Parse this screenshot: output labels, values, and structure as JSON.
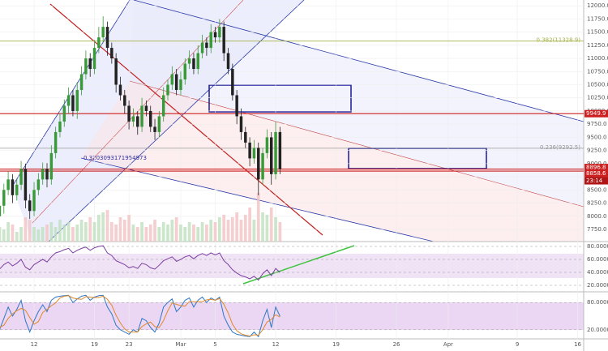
{
  "chart_data": {
    "type": "candlestick",
    "x": [
      8,
      8.5,
      9,
      9.5,
      10,
      10.5,
      11,
      11.5,
      12,
      12.5,
      13,
      13.5,
      14,
      14.5,
      15,
      15.5,
      16,
      16.5,
      17,
      17.5,
      18,
      18.5,
      19,
      19.5,
      20,
      20.5,
      21,
      21.5,
      22,
      22.5,
      23,
      23.5,
      24,
      24.5,
      25,
      25.5,
      26,
      26.5,
      27,
      27.5,
      28,
      28.5,
      29,
      29.5,
      30,
      30.5,
      31,
      31.5,
      32,
      32.5,
      33,
      33.5,
      34,
      34.5,
      35,
      35.5,
      36,
      36.5,
      37,
      37.5,
      38,
      38.5,
      39,
      39.5,
      40,
      40.5
    ],
    "open": [
      8000,
      8200,
      8500,
      8700,
      8400,
      8600,
      8900,
      8300,
      8100,
      8500,
      8700,
      8900,
      8700,
      9200,
      9600,
      9800,
      10100,
      10300,
      10000,
      10400,
      10700,
      11000,
      10800,
      11200,
      11400,
      11600,
      11200,
      11000,
      10500,
      10300,
      10100,
      9800,
      9900,
      9700,
      10100,
      10000,
      9700,
      9600,
      9900,
      10300,
      10500,
      10700,
      10400,
      10600,
      10900,
      11000,
      10800,
      11100,
      11300,
      11200,
      11500,
      11400,
      11600,
      11100,
      10800,
      10300,
      9900,
      9600,
      9400,
      9100,
      9300,
      8700,
      9200,
      9500,
      8800,
      9600
    ],
    "high": [
      8350,
      8620,
      8850,
      8800,
      8720,
      9050,
      9000,
      8420,
      8650,
      8820,
      9020,
      9010,
      9350,
      9700,
      9950,
      10220,
      10450,
      10400,
      10550,
      10850,
      11150,
      11100,
      11350,
      11600,
      11800,
      11700,
      11300,
      11100,
      10650,
      10400,
      10200,
      10050,
      10000,
      10250,
      10200,
      10100,
      9850,
      10000,
      10450,
      10600,
      10850,
      10800,
      10750,
      11000,
      11150,
      11100,
      11250,
      11450,
      11400,
      11650,
      11600,
      11750,
      11700,
      11200,
      10900,
      10400,
      10050,
      9700,
      9500,
      9450,
      9400,
      9300,
      9650,
      9600,
      9800,
      9700
    ],
    "low": [
      7850,
      8050,
      8400,
      8250,
      8300,
      8500,
      8150,
      7950,
      8000,
      8400,
      8600,
      8550,
      8600,
      9100,
      9500,
      9700,
      9950,
      9900,
      9850,
      10300,
      10600,
      10650,
      10700,
      11100,
      11300,
      11050,
      10900,
      10350,
      10200,
      9950,
      9650,
      9700,
      9550,
      9600,
      9900,
      9600,
      9450,
      9500,
      9800,
      10200,
      10400,
      10300,
      10300,
      10500,
      10800,
      10700,
      10700,
      11000,
      11050,
      11100,
      11300,
      11300,
      10950,
      10700,
      10200,
      9750,
      9450,
      9300,
      8950,
      9000,
      8400,
      8600,
      9100,
      8600,
      8700,
      8800
    ],
    "close": [
      8200,
      8500,
      8700,
      8400,
      8600,
      8900,
      8300,
      8100,
      8500,
      8700,
      8900,
      8700,
      9200,
      9600,
      9800,
      10100,
      10300,
      10000,
      10400,
      10700,
      11000,
      10800,
      11200,
      11400,
      11600,
      11200,
      11000,
      10500,
      10300,
      10100,
      9800,
      9900,
      9700,
      10100,
      10000,
      9700,
      9600,
      9900,
      10300,
      10500,
      10700,
      10400,
      10600,
      10900,
      11000,
      10800,
      11100,
      11300,
      11200,
      11500,
      11400,
      11600,
      11100,
      10800,
      10300,
      9900,
      9600,
      9400,
      9100,
      9300,
      8700,
      9200,
      9500,
      8800,
      9600,
      8897
    ],
    "volume": [
      30,
      25,
      40,
      35,
      20,
      30,
      50,
      45,
      30,
      25,
      30,
      35,
      40,
      30,
      45,
      35,
      40,
      30,
      35,
      45,
      40,
      50,
      40,
      55,
      60,
      65,
      40,
      35,
      50,
      45,
      55,
      35,
      30,
      40,
      30,
      35,
      45,
      30,
      40,
      35,
      45,
      50,
      35,
      30,
      40,
      35,
      30,
      40,
      35,
      45,
      40,
      50,
      55,
      45,
      50,
      60,
      45,
      55,
      70,
      45,
      100,
      60,
      55,
      70,
      50,
      40
    ],
    "up_color": "#3a9a3a",
    "down_color": "#222222",
    "xlim": [
      8.05,
      75.7
    ],
    "xticks": [
      {
        "value": 12,
        "label": "12"
      },
      {
        "value": 19,
        "label": "19"
      },
      {
        "value": 23,
        "label": "23"
      },
      {
        "value": 29,
        "label": "Mar"
      },
      {
        "value": 33,
        "label": "5"
      },
      {
        "value": 40,
        "label": "12"
      },
      {
        "value": 47,
        "label": "19"
      },
      {
        "value": 54,
        "label": "26"
      },
      {
        "value": 60,
        "label": "Apr"
      },
      {
        "value": 68,
        "label": "9"
      },
      {
        "value": 75,
        "label": "16"
      }
    ],
    "ylim": [
      7519,
      12110
    ],
    "yticks": [
      {
        "value": 12000,
        "label": "12000.0"
      },
      {
        "value": 11750,
        "label": "11750.0"
      },
      {
        "value": 11500,
        "label": "11500.0"
      },
      {
        "value": 11250,
        "label": "11250.0"
      },
      {
        "value": 11000,
        "label": "11000.0"
      },
      {
        "value": 10750,
        "label": "10750.0"
      },
      {
        "value": 10500,
        "label": "10500.0"
      },
      {
        "value": 10250,
        "label": "10250.0"
      },
      {
        "value": 10000,
        "label": "10000.0"
      },
      {
        "value": 9750,
        "label": "9750.0"
      },
      {
        "value": 9500,
        "label": "9500.0"
      },
      {
        "value": 9250,
        "label": "9250.0"
      },
      {
        "value": 9000,
        "label": "9000.0"
      },
      {
        "value": 8750,
        "label": "8750.0"
      },
      {
        "value": 8500,
        "label": "8500.0"
      },
      {
        "value": 8250,
        "label": "8250.0"
      },
      {
        "value": 8000,
        "label": "8000.0"
      },
      {
        "value": 7750,
        "label": "7750.0"
      }
    ],
    "levels": [
      {
        "value": 9949.9,
        "label": "9949.9",
        "color": "#cc1f1f"
      },
      {
        "value": 8896.8,
        "label": "8896.8",
        "color": "#cc1f1f"
      },
      {
        "value": 8858.6,
        "label": "8858.6",
        "color": "#cc1f1f"
      }
    ],
    "countdown": "23:14",
    "fib_levels": [
      {
        "value": 11328.9,
        "label": "0.382(11328.9)",
        "color": "#a5b24a"
      },
      {
        "value": 9292.5,
        "label": "0.236(9292.5)",
        "color": "#999999"
      }
    ],
    "annotation": "0.3203093171954973",
    "rsi": {
      "values": [
        45,
        52,
        56,
        50,
        54,
        60,
        48,
        44,
        52,
        56,
        60,
        56,
        64,
        70,
        72,
        75,
        77,
        70,
        74,
        77,
        79,
        74,
        78,
        80,
        81,
        70,
        66,
        58,
        55,
        52,
        47,
        49,
        46,
        54,
        52,
        47,
        45,
        51,
        58,
        61,
        64,
        57,
        60,
        64,
        66,
        61,
        66,
        69,
        66,
        70,
        67,
        70,
        58,
        52,
        44,
        39,
        35,
        33,
        30,
        34,
        28,
        38,
        44,
        35,
        46,
        40
      ],
      "color": "#7b3fa0",
      "ylim": [
        12.5,
        87.5
      ],
      "yticks": [
        {
          "value": 80,
          "label": "80.0000"
        },
        {
          "value": 60,
          "label": "60.0000"
        },
        {
          "value": 40,
          "label": "40.0000"
        },
        {
          "value": 20,
          "label": "20.0000"
        }
      ]
    },
    "stoch": {
      "k": [
        20,
        45,
        70,
        50,
        65,
        85,
        40,
        15,
        40,
        60,
        75,
        60,
        85,
        92,
        94,
        95,
        96,
        80,
        88,
        94,
        96,
        85,
        92,
        95,
        96,
        70,
        55,
        30,
        20,
        15,
        10,
        20,
        15,
        45,
        40,
        25,
        15,
        35,
        70,
        80,
        88,
        60,
        70,
        85,
        90,
        70,
        85,
        92,
        80,
        90,
        85,
        92,
        50,
        30,
        15,
        10,
        8,
        6,
        5,
        15,
        5,
        40,
        65,
        25,
        70,
        50
      ],
      "d": [
        25,
        30,
        45,
        55,
        62,
        67,
        63,
        47,
        32,
        38,
        58,
        65,
        73,
        79,
        90,
        94,
        95,
        90,
        88,
        87,
        93,
        92,
        91,
        91,
        94,
        87,
        74,
        52,
        35,
        22,
        15,
        15,
        15,
        27,
        33,
        37,
        27,
        25,
        40,
        62,
        79,
        76,
        73,
        72,
        82,
        82,
        82,
        82,
        86,
        87,
        85,
        89,
        76,
        57,
        32,
        18,
        11,
        8,
        6,
        9,
        8,
        20,
        37,
        43,
        53,
        48
      ],
      "k_color": "#2f78c4",
      "d_color": "#e0892b",
      "ylim": [
        0,
        100
      ],
      "yticks": [
        {
          "value": 80,
          "label": "80.0000"
        },
        {
          "value": 20,
          "label": "20.0000"
        }
      ]
    }
  }
}
